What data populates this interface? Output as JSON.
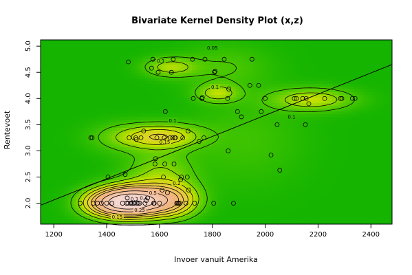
{
  "chart_data": {
    "type": "scatter",
    "title": "Bivariate Kernel Density Plot (x,z)",
    "xlabel": "Invoer vanuit Amerika",
    "ylabel": "Rentevoet",
    "xlim": [
      1150,
      2480
    ],
    "ylim": [
      1.6,
      5.12
    ],
    "xticks": [
      "1200",
      "1400",
      "1600",
      "1800",
      "2000",
      "2200",
      "2400"
    ],
    "yticks": [
      "2.0",
      "2.5",
      "3.0",
      "3.5",
      "4.0",
      "4.5",
      "5.0"
    ],
    "points": [
      [
        1300,
        2.0
      ],
      [
        1340,
        3.25
      ],
      [
        1345,
        3.25
      ],
      [
        1350,
        2.0
      ],
      [
        1365,
        2.0
      ],
      [
        1380,
        2.0
      ],
      [
        1400,
        2.0
      ],
      [
        1405,
        2.5
      ],
      [
        1420,
        2.0
      ],
      [
        1460,
        2.0
      ],
      [
        1470,
        2.55
      ],
      [
        1475,
        2.0
      ],
      [
        1478,
        2.1
      ],
      [
        1480,
        2.0
      ],
      [
        1482,
        4.7
      ],
      [
        1485,
        3.25
      ],
      [
        1490,
        2.0
      ],
      [
        1495,
        2.0
      ],
      [
        1500,
        2.0
      ],
      [
        1505,
        2.0
      ],
      [
        1510,
        3.25
      ],
      [
        1512,
        3.22
      ],
      [
        1515,
        2.0
      ],
      [
        1520,
        2.0
      ],
      [
        1525,
        2.0
      ],
      [
        1530,
        3.25
      ],
      [
        1540,
        3.38
      ],
      [
        1545,
        2.0
      ],
      [
        1550,
        2.05
      ],
      [
        1555,
        2.1
      ],
      [
        1570,
        4.58
      ],
      [
        1575,
        4.75
      ],
      [
        1578,
        2.0
      ],
      [
        1580,
        2.0
      ],
      [
        1583,
        2.75
      ],
      [
        1585,
        2.85
      ],
      [
        1590,
        3.25
      ],
      [
        1595,
        4.5
      ],
      [
        1600,
        2.0
      ],
      [
        1610,
        2.25
      ],
      [
        1615,
        2.5
      ],
      [
        1618,
        3.25
      ],
      [
        1620,
        2.75
      ],
      [
        1622,
        3.75
      ],
      [
        1630,
        2.2
      ],
      [
        1640,
        3.25
      ],
      [
        1645,
        4.5
      ],
      [
        1650,
        3.25
      ],
      [
        1652,
        4.75
      ],
      [
        1655,
        2.75
      ],
      [
        1658,
        3.25
      ],
      [
        1660,
        3.25
      ],
      [
        1665,
        2.0
      ],
      [
        1668,
        2.0
      ],
      [
        1672,
        2.0
      ],
      [
        1676,
        2.0
      ],
      [
        1680,
        2.45
      ],
      [
        1683,
        2.5
      ],
      [
        1688,
        3.25
      ],
      [
        1700,
        2.0
      ],
      [
        1705,
        2.5
      ],
      [
        1708,
        3.38
      ],
      [
        1710,
        2.25
      ],
      [
        1725,
        4.75
      ],
      [
        1728,
        4.0
      ],
      [
        1733,
        2.0
      ],
      [
        1750,
        3.18
      ],
      [
        1760,
        4.0
      ],
      [
        1762,
        4.02
      ],
      [
        1768,
        3.25
      ],
      [
        1772,
        4.75
      ],
      [
        1805,
        2.0
      ],
      [
        1808,
        4.5
      ],
      [
        1810,
        4.52
      ],
      [
        1845,
        4.75
      ],
      [
        1858,
        4.0
      ],
      [
        1860,
        3.0
      ],
      [
        1862,
        4.18
      ],
      [
        1880,
        2.0
      ],
      [
        1895,
        3.75
      ],
      [
        1910,
        3.65
      ],
      [
        1942,
        4.25
      ],
      [
        1950,
        4.75
      ],
      [
        1975,
        4.25
      ],
      [
        1985,
        3.75
      ],
      [
        2000,
        4.0
      ],
      [
        2022,
        2.92
      ],
      [
        2045,
        3.5
      ],
      [
        2055,
        2.63
      ],
      [
        2110,
        4.0
      ],
      [
        2118,
        4.0
      ],
      [
        2142,
        4.0
      ],
      [
        2152,
        3.5
      ],
      [
        2155,
        4.0
      ],
      [
        2165,
        3.9
      ],
      [
        2225,
        4.0
      ],
      [
        2285,
        4.0
      ],
      [
        2290,
        4.0
      ],
      [
        2330,
        4.0
      ],
      [
        2340,
        4.0
      ]
    ],
    "trend_line": {
      "x": [
        1150,
        2480
      ],
      "y": [
        1.96,
        4.65
      ]
    },
    "density_peaks": [
      {
        "x": 1495,
        "y": 2.03,
        "h": 0.55,
        "sx": 85,
        "sy": 0.2
      },
      {
        "x": 1390,
        "y": 2.0,
        "h": 0.18,
        "sx": 70,
        "sy": 0.18
      },
      {
        "x": 1650,
        "y": 2.05,
        "h": 0.22,
        "sx": 70,
        "sy": 0.22
      },
      {
        "x": 1600,
        "y": 2.55,
        "h": 0.1,
        "sx": 90,
        "sy": 0.35
      },
      {
        "x": 1610,
        "y": 3.28,
        "h": 0.18,
        "sx": 100,
        "sy": 0.16
      },
      {
        "x": 1640,
        "y": 4.6,
        "h": 0.12,
        "sx": 70,
        "sy": 0.13
      },
      {
        "x": 1820,
        "y": 4.1,
        "h": 0.12,
        "sx": 55,
        "sy": 0.12
      },
      {
        "x": 2180,
        "y": 3.98,
        "h": 0.14,
        "sx": 110,
        "sy": 0.15
      },
      {
        "x": 1850,
        "y": 4.6,
        "h": 0.05,
        "sx": 120,
        "sy": 0.3
      },
      {
        "x": 1930,
        "y": 3.2,
        "h": 0.04,
        "sx": 150,
        "sy": 0.6
      },
      {
        "x": 1450,
        "y": 3.25,
        "h": 0.06,
        "sx": 90,
        "sy": 0.2
      }
    ],
    "contour_labels": [
      {
        "x": 1800,
        "y": 4.97,
        "text": "0.05"
      },
      {
        "x": 1605,
        "y": 4.72,
        "text": "0.1"
      },
      {
        "x": 1810,
        "y": 4.22,
        "text": "0.1"
      },
      {
        "x": 1650,
        "y": 3.58,
        "text": "0.1"
      },
      {
        "x": 1620,
        "y": 3.17,
        "text": "0.15"
      },
      {
        "x": 2100,
        "y": 3.65,
        "text": "0.1"
      },
      {
        "x": 1665,
        "y": 2.38,
        "text": "0.2"
      },
      {
        "x": 1575,
        "y": 2.2,
        "text": "0.5"
      },
      {
        "x": 1540,
        "y": 2.1,
        "text": "0.4"
      },
      {
        "x": 1505,
        "y": 2.08,
        "text": "0.3"
      },
      {
        "x": 1525,
        "y": 1.87,
        "text": "0.25"
      },
      {
        "x": 1440,
        "y": 1.74,
        "text": "0.15"
      }
    ]
  }
}
